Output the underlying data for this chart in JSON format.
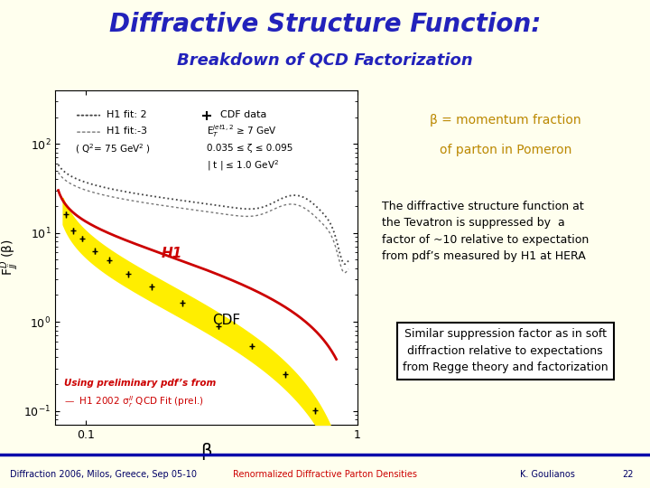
{
  "title": "Diffractive Structure Function:",
  "subtitle": "Breakdown of QCD Factorization",
  "title_color": "#2222bb",
  "subtitle_color": "#2222bb",
  "title_bg": "#ffffcc",
  "bg_color": "#ffffee",
  "beta_label_line1": "β = momentum fraction",
  "beta_label_line2": "of parton in Pomeron",
  "beta_label_color": "#bb8800",
  "text1_line1": "The diffractive structure function at",
  "text1_line2": "the Tevatron is suppressed by  a",
  "text1_line3": "factor of ~10 relative to expectation",
  "text1_line4": "from pdf’s measured by H1 at HERA",
  "text2_line1": "Similar suppression factor as in soft",
  "text2_line2": "diffraction relative to expectations",
  "text2_line3": "from Regge theory and factorization",
  "text_color": "#000000",
  "footer_left": "Diffraction 2006, Milos, Greece, Sep 05-10",
  "footer_center": "Renormalized Diffractive Parton Densities",
  "footer_right": "K. Goulianos",
  "footer_num": "22",
  "footer_color": "#000066",
  "footer_red": "#cc0000",
  "footer_bg": "#dddddd",
  "footer_line_color": "#0000aa",
  "ylabel": "F$^D_{jj}$ (β)",
  "xlabel": "β",
  "plot_bg": "#ffffff",
  "using_text": "Using preliminary pdf’s from",
  "using_text_color": "#cc0000",
  "h1_2002_text": "—  H1 2002 σ$_r^{II}$ QCD Fit (prel.)",
  "h1_2002_color": "#cc0000",
  "h1_label_color": "#cc0000",
  "cdf_label_color": "#000000"
}
